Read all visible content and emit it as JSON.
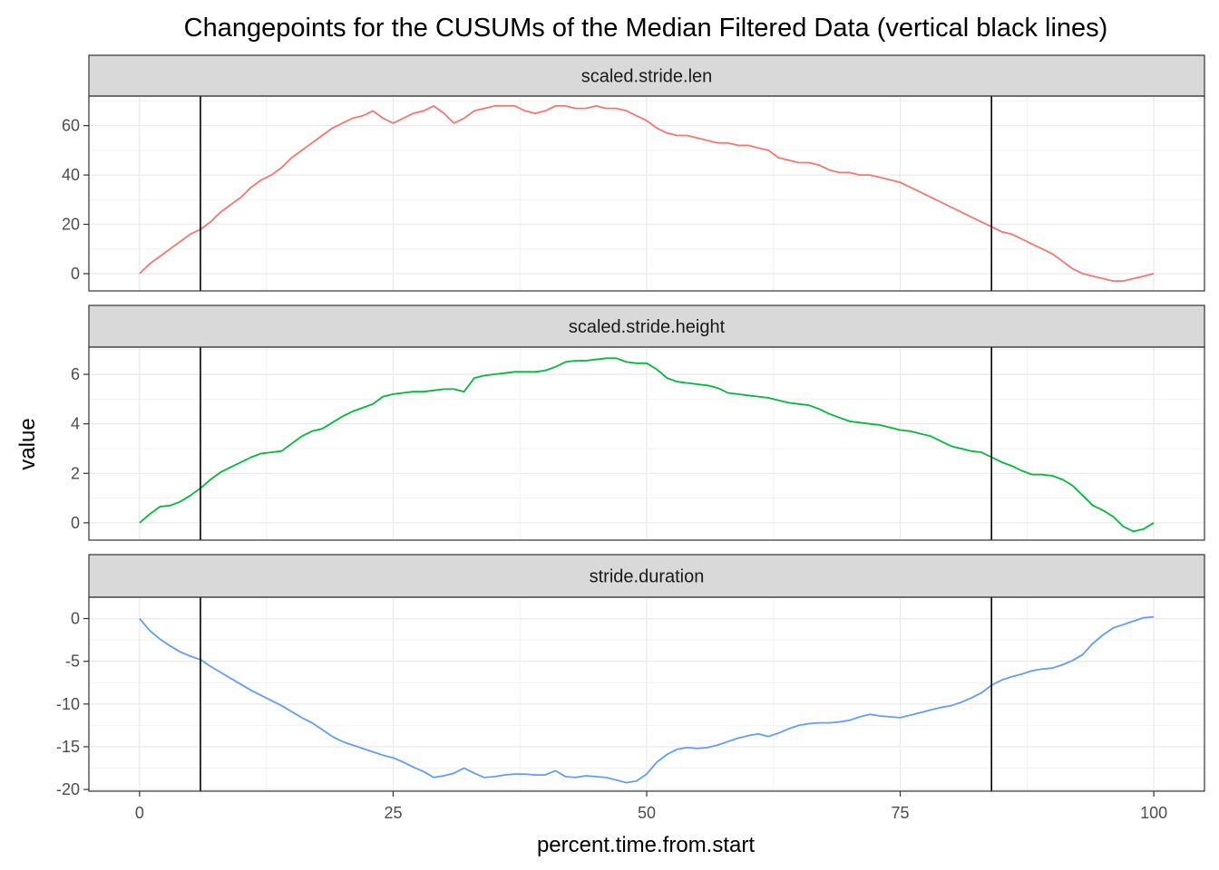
{
  "chart_data": {
    "type": "line",
    "title": "Changepoints for the CUSUMs of the Median Filtered Data (vertical black lines)",
    "xlabel": "percent.time.from.start",
    "ylabel": "value",
    "xlim": [
      0,
      100
    ],
    "x_ticks": [
      "0",
      "25",
      "50",
      "75",
      "100"
    ],
    "changepoints": [
      6,
      84
    ],
    "grid": true,
    "legend": "none",
    "panels": [
      {
        "name": "scaled.stride.len",
        "color": "#F8766D",
        "ylim": [
          -7,
          72
        ],
        "y_ticks": [
          "0",
          "20",
          "40",
          "60"
        ],
        "x": [
          0,
          1,
          2,
          3,
          4,
          5,
          6,
          7,
          8,
          9,
          10,
          11,
          12,
          13,
          14,
          15,
          16,
          17,
          18,
          19,
          20,
          21,
          22,
          23,
          24,
          25,
          26,
          27,
          28,
          29,
          30,
          31,
          32,
          33,
          34,
          35,
          36,
          37,
          38,
          39,
          40,
          41,
          42,
          43,
          44,
          45,
          46,
          47,
          48,
          49,
          50,
          51,
          52,
          53,
          54,
          55,
          56,
          57,
          58,
          59,
          60,
          61,
          62,
          63,
          64,
          65,
          66,
          67,
          68,
          69,
          70,
          71,
          72,
          73,
          74,
          75,
          76,
          77,
          78,
          79,
          80,
          81,
          82,
          83,
          84,
          85,
          86,
          87,
          88,
          89,
          90,
          91,
          92,
          93,
          94,
          95,
          96,
          97,
          98,
          99,
          100
        ],
        "values": [
          0,
          4,
          7,
          10,
          13,
          16,
          18,
          21,
          25,
          28,
          31,
          35,
          38,
          40,
          43,
          47,
          50,
          53,
          56,
          59,
          61,
          63,
          64,
          66,
          63,
          61,
          63,
          65,
          66,
          68,
          65,
          61,
          63,
          66,
          67,
          68,
          68,
          68,
          66,
          65,
          66,
          68,
          68,
          67,
          67,
          68,
          67,
          67,
          66,
          64,
          62,
          59,
          57,
          56,
          56,
          55,
          54,
          53,
          53,
          52,
          52,
          51,
          50,
          47,
          46,
          45,
          45,
          44,
          42,
          41,
          41,
          40,
          40,
          39,
          38,
          37,
          35,
          33,
          31,
          29,
          27,
          25,
          23,
          21,
          19,
          17,
          16,
          14,
          12,
          10,
          8,
          5,
          2,
          0,
          -1,
          -2,
          -3,
          -3,
          -2,
          -1,
          0
        ]
      },
      {
        "name": "scaled.stride.height",
        "color": "#00BA38",
        "ylim": [
          -0.7,
          7.1
        ],
        "y_ticks": [
          "0",
          "2",
          "4",
          "6"
        ],
        "x": [
          0,
          1,
          2,
          3,
          4,
          5,
          6,
          7,
          8,
          9,
          10,
          11,
          12,
          13,
          14,
          15,
          16,
          17,
          18,
          19,
          20,
          21,
          22,
          23,
          24,
          25,
          26,
          27,
          28,
          29,
          30,
          31,
          32,
          33,
          34,
          35,
          36,
          37,
          38,
          39,
          40,
          41,
          42,
          43,
          44,
          45,
          46,
          47,
          48,
          49,
          50,
          51,
          52,
          53,
          54,
          55,
          56,
          57,
          58,
          59,
          60,
          61,
          62,
          63,
          64,
          65,
          66,
          67,
          68,
          69,
          70,
          71,
          72,
          73,
          74,
          75,
          76,
          77,
          78,
          79,
          80,
          81,
          82,
          83,
          84,
          85,
          86,
          87,
          88,
          89,
          90,
          91,
          92,
          93,
          94,
          95,
          96,
          97,
          98,
          99,
          100
        ],
        "values": [
          0,
          0.35,
          0.65,
          0.7,
          0.85,
          1.1,
          1.4,
          1.75,
          2.05,
          2.25,
          2.45,
          2.65,
          2.8,
          2.85,
          2.9,
          3.2,
          3.5,
          3.7,
          3.8,
          4.05,
          4.3,
          4.5,
          4.65,
          4.8,
          5.1,
          5.2,
          5.25,
          5.3,
          5.3,
          5.35,
          5.4,
          5.4,
          5.3,
          5.85,
          5.95,
          6.0,
          6.05,
          6.1,
          6.1,
          6.1,
          6.15,
          6.3,
          6.5,
          6.55,
          6.55,
          6.6,
          6.65,
          6.65,
          6.5,
          6.45,
          6.45,
          6.2,
          5.85,
          5.7,
          5.65,
          5.6,
          5.55,
          5.45,
          5.25,
          5.2,
          5.15,
          5.1,
          5.05,
          4.95,
          4.85,
          4.8,
          4.75,
          4.6,
          4.4,
          4.25,
          4.1,
          4.05,
          4.0,
          3.95,
          3.85,
          3.75,
          3.7,
          3.6,
          3.5,
          3.3,
          3.1,
          3.0,
          2.9,
          2.85,
          2.65,
          2.45,
          2.3,
          2.1,
          1.95,
          1.95,
          1.9,
          1.75,
          1.5,
          1.1,
          0.7,
          0.5,
          0.25,
          -0.15,
          -0.35,
          -0.25,
          0
        ]
      },
      {
        "name": "stride.duration",
        "color": "#619CFF",
        "ylim": [
          -20.2,
          2.5
        ],
        "y_ticks": [
          "-20",
          "-15",
          "-10",
          "-5",
          "0"
        ],
        "x": [
          0,
          1,
          2,
          3,
          4,
          5,
          6,
          7,
          8,
          9,
          10,
          11,
          12,
          13,
          14,
          15,
          16,
          17,
          18,
          19,
          20,
          21,
          22,
          23,
          24,
          25,
          26,
          27,
          28,
          29,
          30,
          31,
          32,
          33,
          34,
          35,
          36,
          37,
          38,
          39,
          40,
          41,
          42,
          43,
          44,
          45,
          46,
          47,
          48,
          49,
          50,
          51,
          52,
          53,
          54,
          55,
          56,
          57,
          58,
          59,
          60,
          61,
          62,
          63,
          64,
          65,
          66,
          67,
          68,
          69,
          70,
          71,
          72,
          73,
          74,
          75,
          76,
          77,
          78,
          79,
          80,
          81,
          82,
          83,
          84,
          85,
          86,
          87,
          88,
          89,
          90,
          91,
          92,
          93,
          94,
          95,
          96,
          97,
          98,
          99,
          100
        ],
        "values": [
          0,
          -1.4,
          -2.4,
          -3.2,
          -3.9,
          -4.4,
          -4.8,
          -5.6,
          -6.3,
          -7.0,
          -7.7,
          -8.4,
          -9.0,
          -9.6,
          -10.2,
          -10.9,
          -11.6,
          -12.2,
          -13.0,
          -13.8,
          -14.4,
          -14.8,
          -15.2,
          -15.6,
          -16.0,
          -16.3,
          -16.8,
          -17.4,
          -17.9,
          -18.6,
          -18.4,
          -18.1,
          -17.5,
          -18.1,
          -18.6,
          -18.5,
          -18.3,
          -18.2,
          -18.2,
          -18.3,
          -18.3,
          -17.8,
          -18.5,
          -18.6,
          -18.4,
          -18.5,
          -18.6,
          -18.9,
          -19.2,
          -19.0,
          -18.2,
          -16.8,
          -15.9,
          -15.3,
          -15.1,
          -15.2,
          -15.1,
          -14.8,
          -14.4,
          -14.0,
          -13.7,
          -13.5,
          -13.8,
          -13.4,
          -12.9,
          -12.5,
          -12.3,
          -12.2,
          -12.2,
          -12.1,
          -11.9,
          -11.5,
          -11.2,
          -11.4,
          -11.5,
          -11.6,
          -11.3,
          -11.0,
          -10.7,
          -10.4,
          -10.2,
          -9.8,
          -9.3,
          -8.7,
          -7.8,
          -7.2,
          -6.8,
          -6.5,
          -6.1,
          -5.9,
          -5.8,
          -5.4,
          -4.9,
          -4.2,
          -2.9,
          -1.9,
          -1.1,
          -0.7,
          -0.3,
          0.1,
          0.2
        ]
      }
    ]
  }
}
